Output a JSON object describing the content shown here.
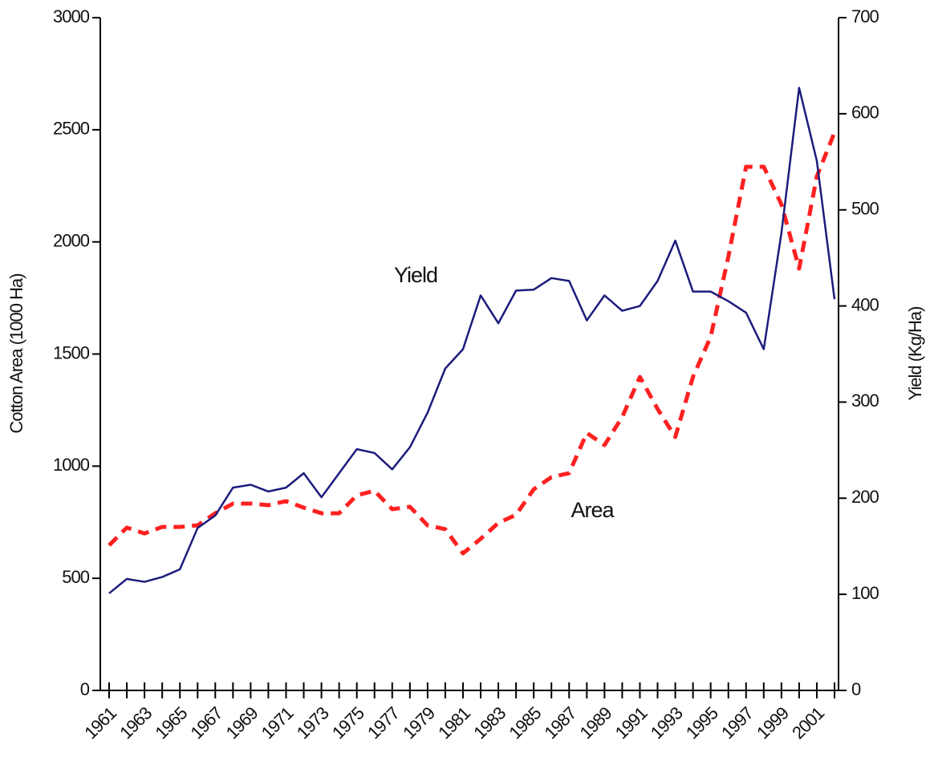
{
  "chart_data": {
    "type": "line",
    "categories": [
      "1961",
      null,
      "1963",
      null,
      "1965",
      null,
      "1967",
      null,
      "1969",
      null,
      "1971",
      null,
      "1973",
      null,
      "1975",
      null,
      "1977",
      null,
      "1979",
      null,
      "1981",
      null,
      "1983",
      null,
      "1985",
      null,
      "1987",
      null,
      "1989",
      null,
      "1991",
      null,
      "1993",
      null,
      "1995",
      null,
      "1997",
      null,
      "1999",
      null,
      "2001",
      null
    ],
    "ylabel": "Cotton Area (1000 Ha)",
    "y2label": "Yield (Kg/Ha)",
    "ylim": [
      0,
      3000
    ],
    "yticks": [
      0,
      500,
      1000,
      1500,
      2000,
      2500,
      3000
    ],
    "y2lim": [
      0,
      700
    ],
    "y2ticks": [
      0,
      100,
      200,
      300,
      400,
      500,
      600,
      700
    ],
    "series": [
      {
        "name": "Area",
        "color": "#ff2020",
        "dashed": true,
        "values": [
          647,
          726,
          700,
          729,
          729,
          736,
          790,
          833,
          833,
          826,
          844,
          815,
          790,
          790,
          870,
          890,
          808,
          819,
          736,
          719,
          611,
          676,
          747,
          783,
          897,
          951,
          969,
          1148,
          1094,
          1219,
          1398,
          1255,
          1130,
          1398,
          1577,
          1934,
          2335,
          2335,
          2167,
          1881,
          2292,
          2488
        ]
      },
      {
        "name": "Yield",
        "color": "#1c1c7c",
        "axis": "y2",
        "values": [
          101,
          116,
          113,
          118,
          126,
          169,
          182,
          211,
          214,
          207,
          211,
          226,
          201,
          226,
          251,
          247,
          230,
          253,
          289,
          335,
          355,
          411,
          382,
          416,
          417,
          429,
          426,
          385,
          411,
          395,
          400,
          426,
          468,
          415,
          415,
          405,
          393,
          355,
          476,
          627,
          551,
          407
        ]
      }
    ]
  }
}
